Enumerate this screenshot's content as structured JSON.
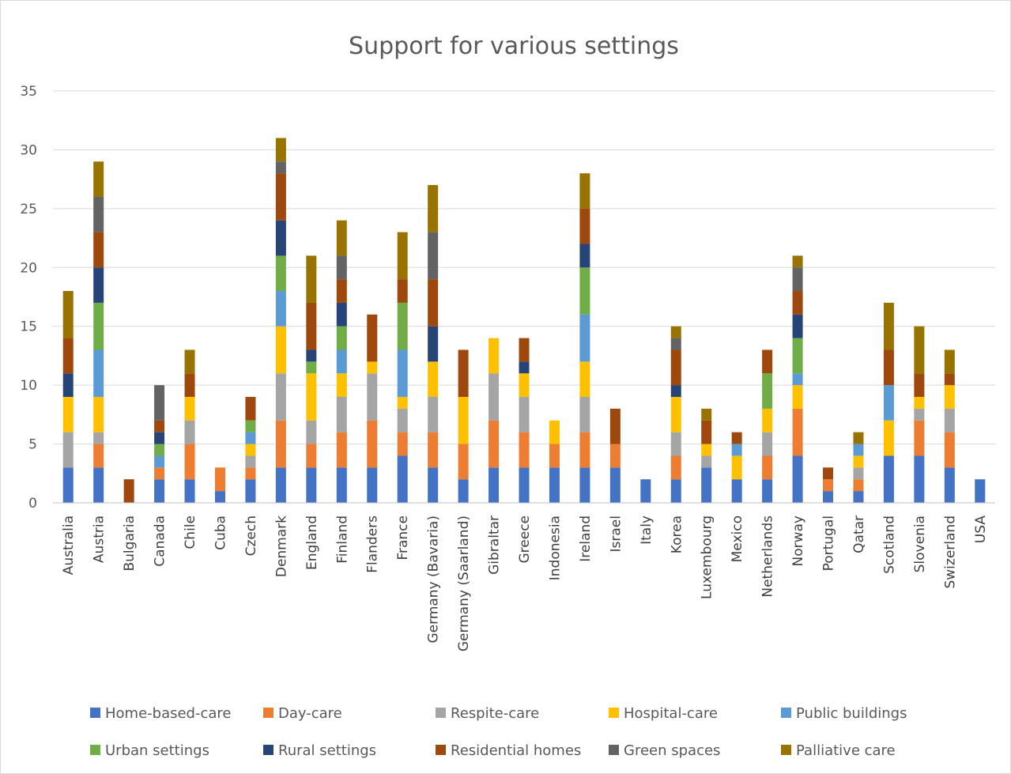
{
  "chart_data": {
    "type": "bar",
    "stacked": true,
    "title": "Support for various settings",
    "xlabel": "",
    "ylabel": "",
    "ylim": [
      0,
      35
    ],
    "yticks": [
      0,
      5,
      10,
      15,
      20,
      25,
      30,
      35
    ],
    "grid": true,
    "legend_position": "bottom",
    "categories": [
      "Australia",
      "Austria",
      "Bulgaria",
      "Canada",
      "Chile",
      "Cuba",
      "Czech",
      "Denmark",
      "England",
      "Finland",
      "Flanders",
      "France",
      "Germany (Bavaria)",
      "Germany (Saarland)",
      "Gibraltar",
      "Greece",
      "Indonesia",
      "Ireland",
      "Israel",
      "Italy",
      "Korea",
      "Luxembourg",
      "Mexico",
      "Netherlands",
      "Norway",
      "Portugal",
      "Qatar",
      "Scotland",
      "Slovenia",
      "Swizerland",
      "USA"
    ],
    "series": [
      {
        "name": "Home-based-care",
        "color": "#4472C4",
        "values": [
          3,
          3,
          0,
          2,
          2,
          1,
          2,
          3,
          3,
          3,
          3,
          4,
          3,
          2,
          3,
          3,
          3,
          3,
          3,
          2,
          2,
          3,
          2,
          2,
          4,
          1,
          1,
          4,
          4,
          3,
          2
        ]
      },
      {
        "name": "Day-care",
        "color": "#ED7D31",
        "values": [
          0,
          2,
          0,
          1,
          3,
          2,
          1,
          4,
          2,
          3,
          4,
          2,
          3,
          3,
          4,
          3,
          2,
          3,
          2,
          0,
          2,
          0,
          0,
          2,
          4,
          1,
          1,
          0,
          3,
          3,
          0
        ]
      },
      {
        "name": "Respite-care",
        "color": "#A5A5A5",
        "values": [
          3,
          1,
          0,
          0,
          2,
          0,
          1,
          4,
          2,
          3,
          4,
          2,
          3,
          0,
          4,
          3,
          0,
          3,
          0,
          0,
          2,
          1,
          0,
          2,
          0,
          0,
          1,
          0,
          1,
          2,
          0
        ]
      },
      {
        "name": "Hospital-care",
        "color": "#FFC000",
        "values": [
          3,
          3,
          0,
          0,
          2,
          0,
          1,
          4,
          4,
          2,
          1,
          1,
          3,
          4,
          3,
          2,
          2,
          3,
          0,
          0,
          3,
          1,
          2,
          2,
          2,
          0,
          1,
          3,
          1,
          2,
          0
        ]
      },
      {
        "name": "Public buildings",
        "color": "#5B9BD5",
        "values": [
          0,
          4,
          0,
          1,
          0,
          0,
          1,
          3,
          0,
          2,
          0,
          4,
          0,
          0,
          0,
          0,
          0,
          4,
          0,
          0,
          0,
          0,
          1,
          0,
          1,
          0,
          1,
          3,
          0,
          0,
          0
        ]
      },
      {
        "name": "Urban settings",
        "color": "#70AD47",
        "values": [
          0,
          4,
          0,
          1,
          0,
          0,
          1,
          3,
          1,
          2,
          0,
          4,
          0,
          0,
          0,
          0,
          0,
          4,
          0,
          0,
          0,
          0,
          0,
          3,
          3,
          0,
          0,
          0,
          0,
          0,
          0
        ]
      },
      {
        "name": "Rural settings",
        "color": "#264478",
        "values": [
          2,
          3,
          0,
          1,
          0,
          0,
          0,
          3,
          1,
          2,
          0,
          0,
          3,
          0,
          0,
          1,
          0,
          2,
          0,
          0,
          1,
          0,
          0,
          0,
          2,
          0,
          0,
          0,
          0,
          0,
          0
        ]
      },
      {
        "name": "Residential homes",
        "color": "#9E480E",
        "values": [
          3,
          3,
          2,
          1,
          2,
          0,
          2,
          4,
          4,
          2,
          4,
          2,
          4,
          4,
          0,
          2,
          0,
          3,
          3,
          0,
          3,
          2,
          1,
          2,
          2,
          1,
          0,
          3,
          2,
          1,
          0
        ]
      },
      {
        "name": "Green spaces",
        "color": "#636363",
        "values": [
          0,
          3,
          0,
          3,
          0,
          0,
          0,
          1,
          0,
          2,
          0,
          0,
          4,
          0,
          0,
          0,
          0,
          0,
          0,
          0,
          1,
          0,
          0,
          0,
          2,
          0,
          0,
          0,
          0,
          0,
          0
        ]
      },
      {
        "name": "Palliative care",
        "color": "#997300",
        "values": [
          4,
          3,
          0,
          0,
          2,
          0,
          0,
          2,
          4,
          3,
          0,
          4,
          4,
          0,
          0,
          0,
          0,
          3,
          0,
          0,
          1,
          1,
          0,
          0,
          1,
          0,
          1,
          4,
          4,
          2,
          0
        ]
      }
    ]
  }
}
